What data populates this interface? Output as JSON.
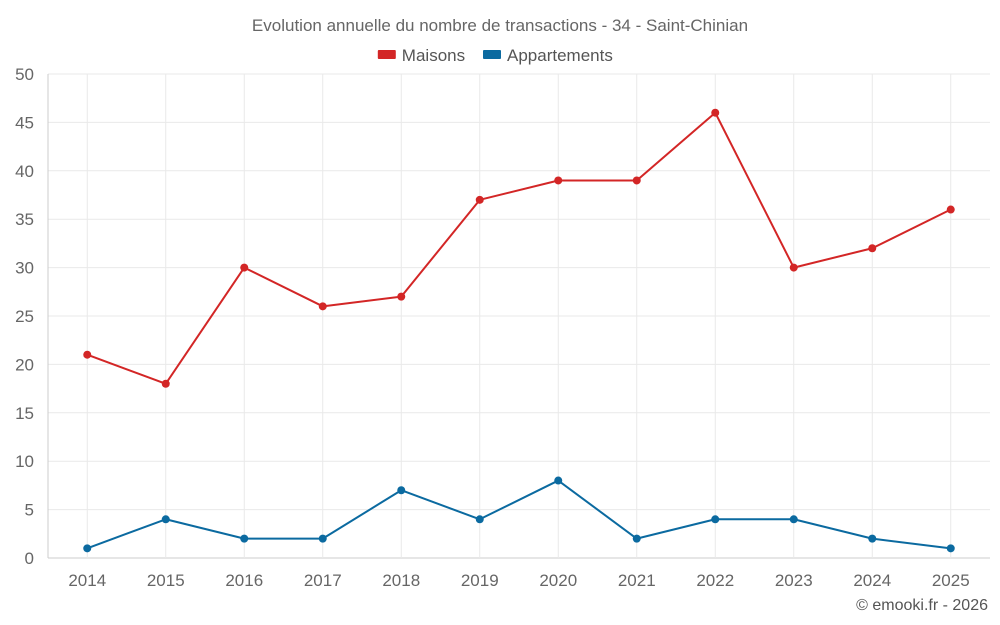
{
  "chart_data": {
    "type": "line",
    "title": "Evolution annuelle du nombre de transactions - 34 - Saint-Chinian",
    "categories": [
      "2014",
      "2015",
      "2016",
      "2017",
      "2018",
      "2019",
      "2020",
      "2021",
      "2022",
      "2023",
      "2024",
      "2025"
    ],
    "series": [
      {
        "name": "Maisons",
        "color": "#d32626",
        "values": [
          21,
          18,
          30,
          26,
          27,
          37,
          39,
          39,
          46,
          30,
          32,
          36
        ]
      },
      {
        "name": "Appartements",
        "color": "#0b6aa0",
        "values": [
          1,
          4,
          2,
          2,
          7,
          4,
          8,
          2,
          4,
          4,
          2,
          1
        ]
      }
    ],
    "ylim": [
      0,
      50
    ],
    "yticks": [
      0,
      5,
      10,
      15,
      20,
      25,
      30,
      35,
      40,
      45,
      50
    ],
    "xlabel": "",
    "ylabel": "",
    "grid": true,
    "legend": "top-center"
  },
  "footer": "© emooki.fr - 2026"
}
